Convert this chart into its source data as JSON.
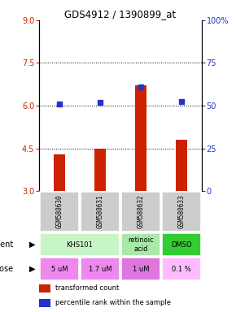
{
  "title": "GDS4912 / 1390899_at",
  "samples": [
    "GSM580630",
    "GSM580631",
    "GSM580632",
    "GSM580633"
  ],
  "bar_values": [
    4.3,
    4.5,
    6.7,
    4.8
  ],
  "scatter_values": [
    6.05,
    6.1,
    6.65,
    6.15
  ],
  "bar_color": "#cc2200",
  "scatter_color": "#2233cc",
  "ylim_left": [
    3,
    9
  ],
  "ylim_right": [
    0,
    100
  ],
  "yticks_left": [
    3,
    4.5,
    6,
    7.5,
    9
  ],
  "yticks_right": [
    0,
    25,
    50,
    75,
    100
  ],
  "hlines": [
    4.5,
    6.0,
    7.5
  ],
  "agent_groups": [
    {
      "label": "KHS101",
      "start": 0,
      "end": 2,
      "color": "#c8f5c8"
    },
    {
      "label": "retinoic\nacid",
      "start": 2,
      "end": 3,
      "color": "#a8e8a8"
    },
    {
      "label": "DMSO",
      "start": 3,
      "end": 4,
      "color": "#33cc33"
    }
  ],
  "dose_labels": [
    "5 uM",
    "1.7 uM",
    "1 uM",
    "0.1 %"
  ],
  "dose_colors": [
    "#ee88ee",
    "#ee88ee",
    "#dd77dd",
    "#ffbbff"
  ],
  "sample_bg_color": "#cccccc",
  "legend_bar_label": "transformed count",
  "legend_scatter_label": "percentile rank within the sample",
  "agent_row_label": "agent",
  "dose_row_label": "dose"
}
